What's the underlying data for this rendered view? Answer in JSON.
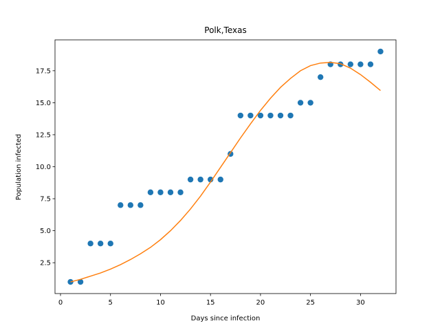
{
  "chart_data": {
    "type": "scatter",
    "title": "Polk,Texas",
    "xlabel": "Days since infection",
    "ylabel": "Population infected",
    "xlim": [
      -0.55,
      33.55
    ],
    "ylim": [
      0.09,
      19.91
    ],
    "xticks": [
      0,
      5,
      10,
      15,
      20,
      25,
      30
    ],
    "xtick_labels": [
      "0",
      "5",
      "10",
      "15",
      "20",
      "25",
      "30"
    ],
    "yticks": [
      2.5,
      5.0,
      7.5,
      10.0,
      12.5,
      15.0,
      17.5
    ],
    "ytick_labels": [
      "2.5",
      "5.0",
      "7.5",
      "10.0",
      "12.5",
      "15.0",
      "17.5"
    ],
    "grid": false,
    "series": [
      {
        "kind": "scatter",
        "color": "#1f77b4",
        "x": [
          1,
          2,
          3,
          4,
          5,
          6,
          7,
          8,
          9,
          10,
          11,
          12,
          13,
          14,
          15,
          16,
          17,
          18,
          19,
          20,
          21,
          22,
          23,
          24,
          25,
          26,
          27,
          28,
          29,
          30,
          31,
          32
        ],
        "y": [
          1,
          1,
          4,
          4,
          4,
          7,
          7,
          7,
          8,
          8,
          8,
          8,
          9,
          9,
          9,
          9,
          11,
          14,
          14,
          14,
          14,
          14,
          14,
          15,
          15,
          17,
          18,
          18,
          18,
          18,
          18,
          19
        ]
      },
      {
        "kind": "line",
        "color": "#ff7f0e",
        "x": [
          1,
          2,
          3,
          4,
          5,
          6,
          7,
          8,
          9,
          10,
          11,
          12,
          13,
          14,
          15,
          16,
          17,
          18,
          19,
          20,
          21,
          22,
          23,
          24,
          25,
          26,
          27,
          28,
          29,
          30,
          31,
          32
        ],
        "y": [
          1.0,
          1.2,
          1.45,
          1.7,
          2.0,
          2.35,
          2.75,
          3.2,
          3.7,
          4.3,
          5.0,
          5.8,
          6.7,
          7.7,
          8.8,
          9.95,
          11.1,
          12.25,
          13.35,
          14.4,
          15.35,
          16.2,
          16.9,
          17.5,
          17.9,
          18.1,
          18.15,
          18.05,
          17.7,
          17.2,
          16.6,
          15.95
        ]
      }
    ]
  }
}
